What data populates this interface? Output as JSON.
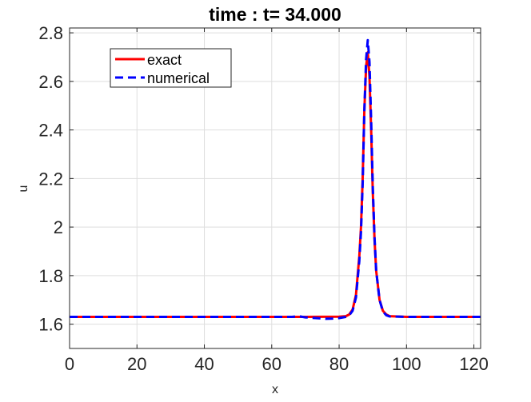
{
  "chart_data": {
    "type": "line",
    "title": "time : t= 34.000",
    "xlabel": "x",
    "ylabel": "u",
    "xlim": [
      0,
      122
    ],
    "ylim": [
      1.5,
      2.82
    ],
    "xticks": [
      0,
      20,
      40,
      60,
      80,
      100,
      120
    ],
    "yticks": [
      1.6,
      1.8,
      2.0,
      2.2,
      2.4,
      2.6,
      2.8
    ],
    "xtick_labels": [
      "0",
      "20",
      "40",
      "60",
      "80",
      "100",
      "120"
    ],
    "ytick_labels": [
      "1.6",
      "1.8",
      "2",
      "2.2",
      "2.4",
      "2.6",
      "2.8"
    ],
    "grid": true,
    "legend_position": "top-left",
    "series": [
      {
        "name": "exact",
        "color": "#ff0000",
        "style": "solid",
        "points": [
          [
            0,
            1.63
          ],
          [
            70,
            1.63
          ],
          [
            80,
            1.631
          ],
          [
            82,
            1.633
          ],
          [
            83,
            1.64
          ],
          [
            84,
            1.66
          ],
          [
            85,
            1.72
          ],
          [
            86,
            1.88
          ],
          [
            86.5,
            2.0
          ],
          [
            87,
            2.2
          ],
          [
            87.5,
            2.48
          ],
          [
            88,
            2.66
          ],
          [
            88.5,
            2.72
          ],
          [
            89,
            2.62
          ],
          [
            89.5,
            2.4
          ],
          [
            90,
            2.14
          ],
          [
            90.5,
            1.95
          ],
          [
            91,
            1.82
          ],
          [
            92,
            1.7
          ],
          [
            93,
            1.655
          ],
          [
            94,
            1.64
          ],
          [
            95,
            1.633
          ],
          [
            100,
            1.63
          ],
          [
            122,
            1.63
          ]
        ]
      },
      {
        "name": "numerical",
        "color": "#0000ff",
        "style": "dashed",
        "points": [
          [
            0,
            1.63
          ],
          [
            66,
            1.63
          ],
          [
            68,
            1.633
          ],
          [
            70,
            1.628
          ],
          [
            74,
            1.624
          ],
          [
            76,
            1.622
          ],
          [
            78,
            1.623
          ],
          [
            80,
            1.625
          ],
          [
            82,
            1.63
          ],
          [
            83,
            1.637
          ],
          [
            84,
            1.655
          ],
          [
            85,
            1.71
          ],
          [
            86,
            1.86
          ],
          [
            86.5,
            1.98
          ],
          [
            87,
            2.18
          ],
          [
            87.5,
            2.48
          ],
          [
            88,
            2.69
          ],
          [
            88.5,
            2.77
          ],
          [
            89,
            2.68
          ],
          [
            89.5,
            2.44
          ],
          [
            90,
            2.16
          ],
          [
            90.5,
            1.96
          ],
          [
            91,
            1.82
          ],
          [
            92,
            1.7
          ],
          [
            93,
            1.652
          ],
          [
            94,
            1.637
          ],
          [
            95,
            1.632
          ],
          [
            100,
            1.63
          ],
          [
            122,
            1.63
          ]
        ]
      }
    ]
  }
}
